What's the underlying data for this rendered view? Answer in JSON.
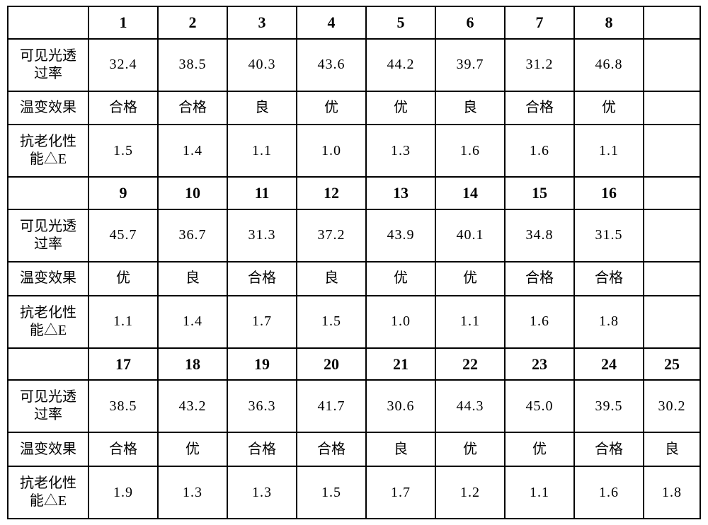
{
  "labels": {
    "vlt": "可见光透过率",
    "vlt_l1": "可见光透",
    "vlt_l2": "过率",
    "tc": "温变效果",
    "ag": "抗老化性能△E",
    "ag_l1": "抗老化性",
    "ag_l2": "能△E"
  },
  "blocks": [
    {
      "headers": [
        "1",
        "2",
        "3",
        "4",
        "5",
        "6",
        "7",
        "8"
      ],
      "vlt": [
        "32.4",
        "38.5",
        "40.3",
        "43.6",
        "44.2",
        "39.7",
        "31.2",
        "46.8"
      ],
      "tc": [
        "合格",
        "合格",
        "良",
        "优",
        "优",
        "良",
        "合格",
        "优"
      ],
      "ag": [
        "1.5",
        "1.4",
        "1.1",
        "1.0",
        "1.3",
        "1.6",
        "1.6",
        "1.1"
      ],
      "extra_header": "",
      "extra_vlt": "",
      "extra_tc": "",
      "extra_ag": ""
    },
    {
      "headers": [
        "9",
        "10",
        "11",
        "12",
        "13",
        "14",
        "15",
        "16"
      ],
      "vlt": [
        "45.7",
        "36.7",
        "31.3",
        "37.2",
        "43.9",
        "40.1",
        "34.8",
        "31.5"
      ],
      "tc": [
        "优",
        "良",
        "合格",
        "良",
        "优",
        "优",
        "合格",
        "合格"
      ],
      "ag": [
        "1.1",
        "1.4",
        "1.7",
        "1.5",
        "1.0",
        "1.1",
        "1.6",
        "1.8"
      ],
      "extra_header": "",
      "extra_vlt": "",
      "extra_tc": "",
      "extra_ag": ""
    },
    {
      "headers": [
        "17",
        "18",
        "19",
        "20",
        "21",
        "22",
        "23",
        "24"
      ],
      "vlt": [
        "38.5",
        "43.2",
        "36.3",
        "41.7",
        "30.6",
        "44.3",
        "45.0",
        "39.5"
      ],
      "tc": [
        "合格",
        "优",
        "合格",
        "合格",
        "良",
        "优",
        "优",
        "合格"
      ],
      "ag": [
        "1.9",
        "1.3",
        "1.3",
        "1.5",
        "1.7",
        "1.2",
        "1.1",
        "1.6"
      ],
      "extra_header": "25",
      "extra_vlt": "30.2",
      "extra_tc": "良",
      "extra_ag": "1.8"
    }
  ],
  "colors": {
    "border": "#000000",
    "background": "#ffffff",
    "text": "#000000"
  }
}
